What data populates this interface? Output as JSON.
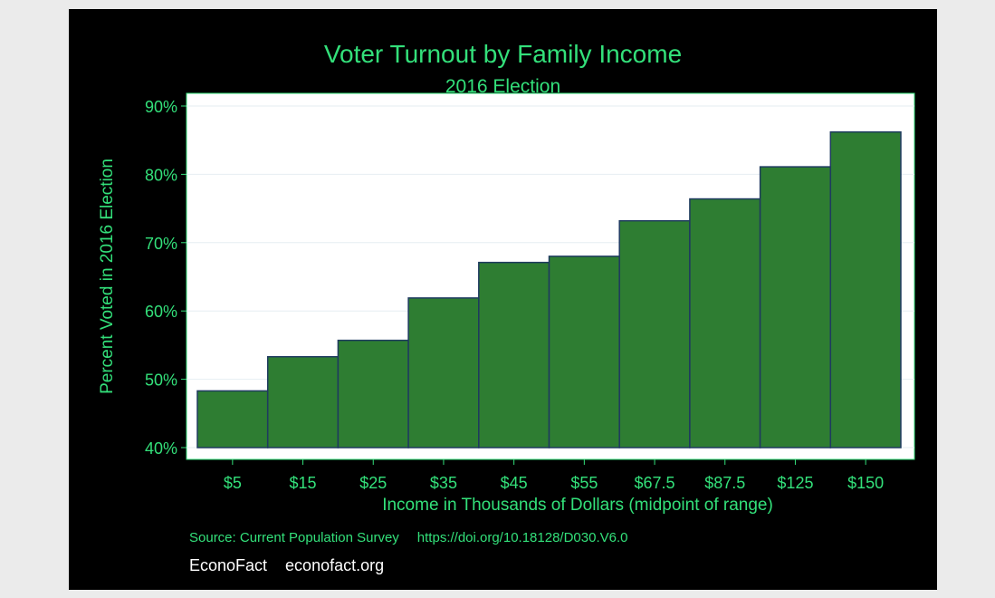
{
  "colors": {
    "panel": "#000000",
    "page": "#ebebeb",
    "accent_text": "#33e07a",
    "bar_fill": "#2e7d32",
    "bar_stroke": "#1e3a5f",
    "plot_bg": "#ffffff",
    "gridline": "#e6eef2"
  },
  "footer": {
    "source": "Source: Current Population Survey",
    "doi": "https://doi.org/10.18128/D030.V6.0",
    "brand": "EconoFact",
    "site": "econofact.org"
  },
  "chart_data": {
    "type": "bar",
    "title": "Voter Turnout by Family Income",
    "subtitle": "2016 Election",
    "xlabel": "Income in Thousands of Dollars (midpoint of range)",
    "ylabel": "Percent Voted in 2016 Election",
    "categories": [
      "$5",
      "$15",
      "$25",
      "$35",
      "$45",
      "$55",
      "$67.5",
      "$87.5",
      "$125",
      "$150"
    ],
    "values": [
      48.3,
      53.3,
      55.7,
      61.9,
      67.1,
      68.0,
      73.2,
      76.4,
      81.1,
      86.2
    ],
    "ylim": [
      40,
      90
    ],
    "yticks": [
      40,
      50,
      60,
      70,
      80,
      90
    ],
    "ytick_labels": [
      "40%",
      "50%",
      "60%",
      "70%",
      "80%",
      "90%"
    ],
    "bar_base": 40,
    "grid": true,
    "legend": "none"
  }
}
